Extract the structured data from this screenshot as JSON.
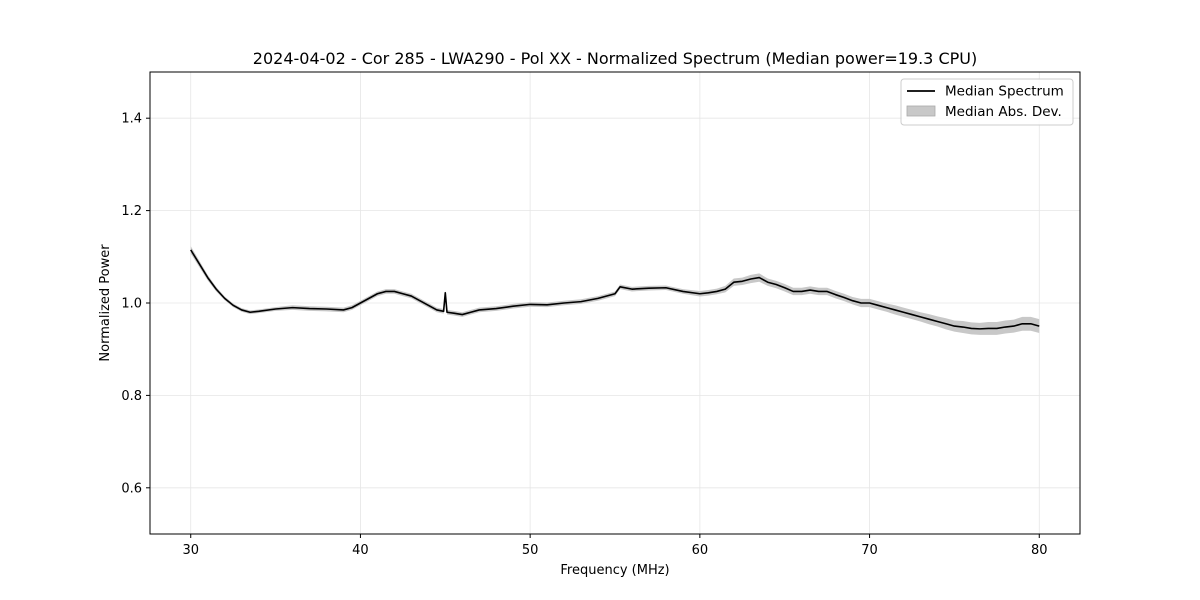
{
  "chart_data": {
    "type": "line",
    "title": "2024-04-02 - Cor 285 - LWA290 - Pol XX - Normalized Spectrum (Median power=19.3 CPU)",
    "xlabel": "Frequency (MHz)",
    "ylabel": "Normalized Power",
    "xlim": [
      27.6,
      82.4
    ],
    "ylim": [
      0.5,
      1.5
    ],
    "xticks": [
      30,
      40,
      50,
      60,
      70,
      80
    ],
    "xtick_labels": [
      "30",
      "40",
      "50",
      "60",
      "70",
      "80"
    ],
    "yticks": [
      0.6,
      0.8,
      1.0,
      1.2,
      1.4
    ],
    "ytick_labels": [
      "0.6",
      "0.8",
      "1.0",
      "1.2",
      "1.4"
    ],
    "grid": true,
    "legend_position": "top-right",
    "legend": [
      "Median Spectrum",
      "Median Abs. Dev."
    ],
    "colors": {
      "line": "#000000",
      "band": "#c8c8c8",
      "grid": "#e6e6e6"
    },
    "series": [
      {
        "name": "Median Spectrum",
        "x": [
          30,
          30.5,
          31,
          31.5,
          32,
          32.5,
          33,
          33.5,
          34,
          35,
          36,
          37,
          38,
          39,
          39.5,
          40,
          40.5,
          41,
          41.5,
          42,
          42.5,
          43,
          43.5,
          44,
          44.5,
          44.9,
          45.0,
          45.1,
          45.5,
          46,
          46.5,
          47,
          48,
          49,
          50,
          51,
          52,
          53,
          54,
          55,
          55.3,
          56,
          57,
          58,
          59,
          60,
          60.5,
          61,
          61.5,
          62,
          62.5,
          63,
          63.5,
          64,
          64.5,
          65,
          65.5,
          66,
          66.5,
          67,
          67.5,
          68,
          68.5,
          69,
          69.5,
          70,
          70.5,
          71,
          71.5,
          72,
          72.5,
          73,
          73.5,
          74,
          74.5,
          75,
          75.5,
          76,
          76.5,
          77,
          77.5,
          78,
          78.5,
          79,
          79.5,
          80
        ],
        "values": [
          1.115,
          1.085,
          1.055,
          1.03,
          1.01,
          0.995,
          0.985,
          0.98,
          0.982,
          0.987,
          0.99,
          0.988,
          0.987,
          0.985,
          0.99,
          1.0,
          1.01,
          1.02,
          1.025,
          1.025,
          1.02,
          1.015,
          1.005,
          0.995,
          0.985,
          0.982,
          1.022,
          0.98,
          0.978,
          0.975,
          0.98,
          0.985,
          0.988,
          0.993,
          0.997,
          0.996,
          1.0,
          1.003,
          1.01,
          1.02,
          1.035,
          1.03,
          1.032,
          1.033,
          1.025,
          1.02,
          1.022,
          1.025,
          1.03,
          1.045,
          1.047,
          1.052,
          1.055,
          1.045,
          1.04,
          1.033,
          1.025,
          1.025,
          1.028,
          1.025,
          1.025,
          1.018,
          1.012,
          1.005,
          1.0,
          1.0,
          0.995,
          0.99,
          0.985,
          0.98,
          0.975,
          0.97,
          0.965,
          0.96,
          0.955,
          0.95,
          0.948,
          0.945,
          0.944,
          0.945,
          0.945,
          0.948,
          0.95,
          0.955,
          0.955,
          0.95
        ],
        "mad": [
          0.008,
          0.007,
          0.006,
          0.005,
          0.004,
          0.004,
          0.004,
          0.004,
          0.004,
          0.004,
          0.005,
          0.005,
          0.005,
          0.005,
          0.005,
          0.005,
          0.005,
          0.005,
          0.005,
          0.005,
          0.005,
          0.005,
          0.005,
          0.005,
          0.005,
          0.005,
          0.005,
          0.005,
          0.005,
          0.005,
          0.005,
          0.005,
          0.005,
          0.005,
          0.005,
          0.005,
          0.005,
          0.005,
          0.005,
          0.005,
          0.005,
          0.005,
          0.005,
          0.005,
          0.005,
          0.006,
          0.006,
          0.006,
          0.007,
          0.008,
          0.008,
          0.009,
          0.009,
          0.008,
          0.008,
          0.008,
          0.008,
          0.008,
          0.008,
          0.008,
          0.008,
          0.008,
          0.008,
          0.008,
          0.009,
          0.009,
          0.009,
          0.009,
          0.01,
          0.01,
          0.01,
          0.01,
          0.011,
          0.011,
          0.012,
          0.012,
          0.013,
          0.013,
          0.013,
          0.014,
          0.014,
          0.014,
          0.014,
          0.015,
          0.015,
          0.015
        ]
      }
    ]
  }
}
